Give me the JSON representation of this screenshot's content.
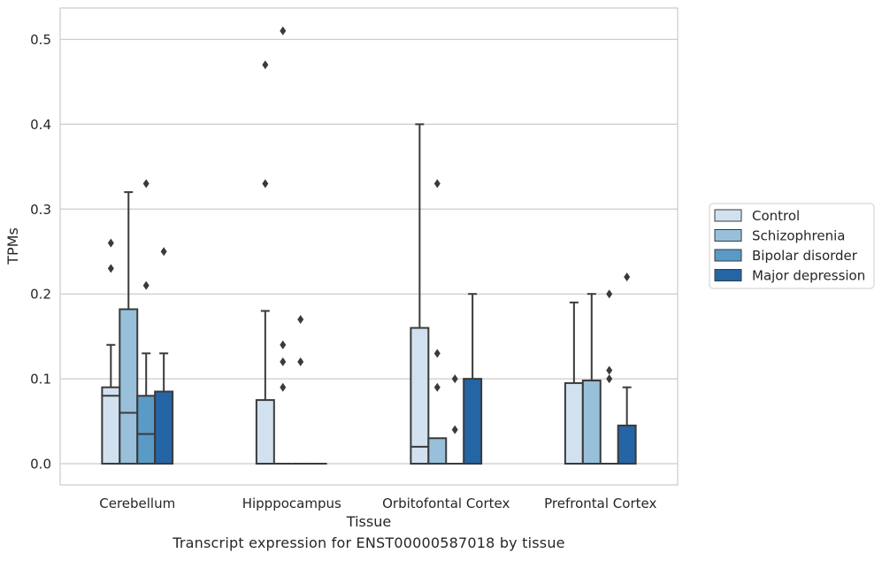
{
  "chart_data": {
    "type": "boxplot",
    "xlabel": "Tissue",
    "ylabel": "TPMs",
    "ylim": [
      -0.025,
      0.537
    ],
    "yticks": [
      0.0,
      0.1,
      0.2,
      0.3,
      0.4,
      0.5
    ],
    "ytick_labels": [
      "0.0",
      "0.1",
      "0.2",
      "0.3",
      "0.4",
      "0.5"
    ],
    "grid": "horizontal",
    "legend_position": "right",
    "categories": [
      "Cerebellum",
      "Hipppocampus",
      "Orbitofontal Cortex",
      "Prefrontal Cortex"
    ],
    "series": [
      {
        "name": "Control",
        "color": "#d1e1ef",
        "boxes": [
          {
            "q1": 0.0,
            "median": 0.08,
            "q3": 0.09,
            "whisker_low": 0.0,
            "whisker_high": 0.14,
            "outliers": [
              0.23,
              0.26
            ]
          },
          {
            "q1": 0.0,
            "median": 0.0,
            "q3": 0.075,
            "whisker_low": 0.0,
            "whisker_high": 0.18,
            "outliers": [
              0.33,
              0.47
            ]
          },
          {
            "q1": 0.0,
            "median": 0.02,
            "q3": 0.16,
            "whisker_low": 0.0,
            "whisker_high": 0.4,
            "outliers": []
          },
          {
            "q1": 0.0,
            "median": 0.0,
            "q3": 0.095,
            "whisker_low": 0.0,
            "whisker_high": 0.19,
            "outliers": []
          }
        ]
      },
      {
        "name": "Schizophrenia",
        "color": "#99c0da",
        "boxes": [
          {
            "q1": 0.0,
            "median": 0.06,
            "q3": 0.182,
            "whisker_low": 0.0,
            "whisker_high": 0.32,
            "outliers": []
          },
          {
            "q1": 0.0,
            "median": 0.0,
            "q3": 0.0,
            "whisker_low": 0.0,
            "whisker_high": 0.0,
            "outliers": [
              0.09,
              0.12,
              0.14,
              0.51
            ]
          },
          {
            "q1": 0.0,
            "median": 0.0,
            "q3": 0.03,
            "whisker_low": 0.0,
            "whisker_high": 0.03,
            "outliers": [
              0.09,
              0.13,
              0.33
            ]
          },
          {
            "q1": 0.0,
            "median": 0.0,
            "q3": 0.098,
            "whisker_low": 0.0,
            "whisker_high": 0.2,
            "outliers": []
          }
        ]
      },
      {
        "name": "Bipolar disorder",
        "color": "#5a9ac6",
        "boxes": [
          {
            "q1": 0.0,
            "median": 0.035,
            "q3": 0.08,
            "whisker_low": 0.0,
            "whisker_high": 0.13,
            "outliers": [
              0.21,
              0.33
            ]
          },
          {
            "q1": 0.0,
            "median": 0.0,
            "q3": 0.0,
            "whisker_low": 0.0,
            "whisker_high": 0.0,
            "outliers": [
              0.12,
              0.17
            ]
          },
          {
            "q1": 0.0,
            "median": 0.0,
            "q3": 0.0,
            "whisker_low": 0.0,
            "whisker_high": 0.0,
            "outliers": [
              0.04,
              0.1
            ]
          },
          {
            "q1": 0.0,
            "median": 0.0,
            "q3": 0.0,
            "whisker_low": 0.0,
            "whisker_high": 0.0,
            "outliers": [
              0.1,
              0.11,
              0.2
            ]
          }
        ]
      },
      {
        "name": "Major depression",
        "color": "#2465a6",
        "boxes": [
          {
            "q1": 0.0,
            "median": 0.0,
            "q3": 0.085,
            "whisker_low": 0.0,
            "whisker_high": 0.13,
            "outliers": [
              0.25
            ]
          },
          {
            "q1": 0.0,
            "median": 0.0,
            "q3": 0.0,
            "whisker_low": 0.0,
            "whisker_high": 0.0,
            "outliers": []
          },
          {
            "q1": 0.0,
            "median": 0.0,
            "q3": 0.1,
            "whisker_low": 0.0,
            "whisker_high": 0.2,
            "outliers": []
          },
          {
            "q1": 0.0,
            "median": 0.0,
            "q3": 0.045,
            "whisker_low": 0.0,
            "whisker_high": 0.09,
            "outliers": [
              0.22
            ]
          }
        ]
      }
    ]
  },
  "caption": "Transcript expression for ENST00000587018 by tissue",
  "colors": {
    "grid": "#cccccc",
    "frame": "#cccccc",
    "box_edge": "#3a3a3a",
    "outlier": "#3a3a3a"
  }
}
